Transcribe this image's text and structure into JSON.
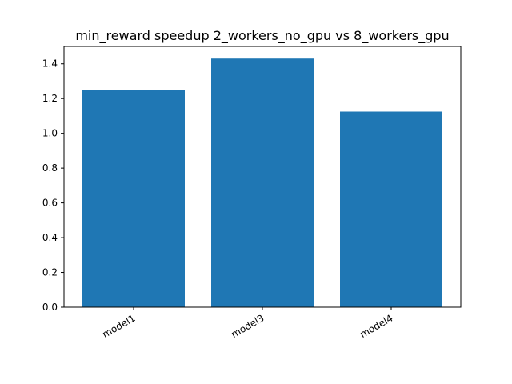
{
  "chart_data": {
    "type": "bar",
    "title": "min_reward speedup 2_workers_no_gpu vs 8_workers_gpu",
    "xlabel": "",
    "ylabel": "",
    "categories": [
      "model1",
      "model3",
      "model4"
    ],
    "values": [
      1.25,
      1.43,
      1.125
    ],
    "ylim": [
      0,
      1.5
    ],
    "yticks": [
      "0.0",
      "0.2",
      "0.4",
      "0.6",
      "0.8",
      "1.0",
      "1.2",
      "1.4"
    ],
    "bar_color": "#1f77b4",
    "grid": false,
    "legend": "none"
  }
}
